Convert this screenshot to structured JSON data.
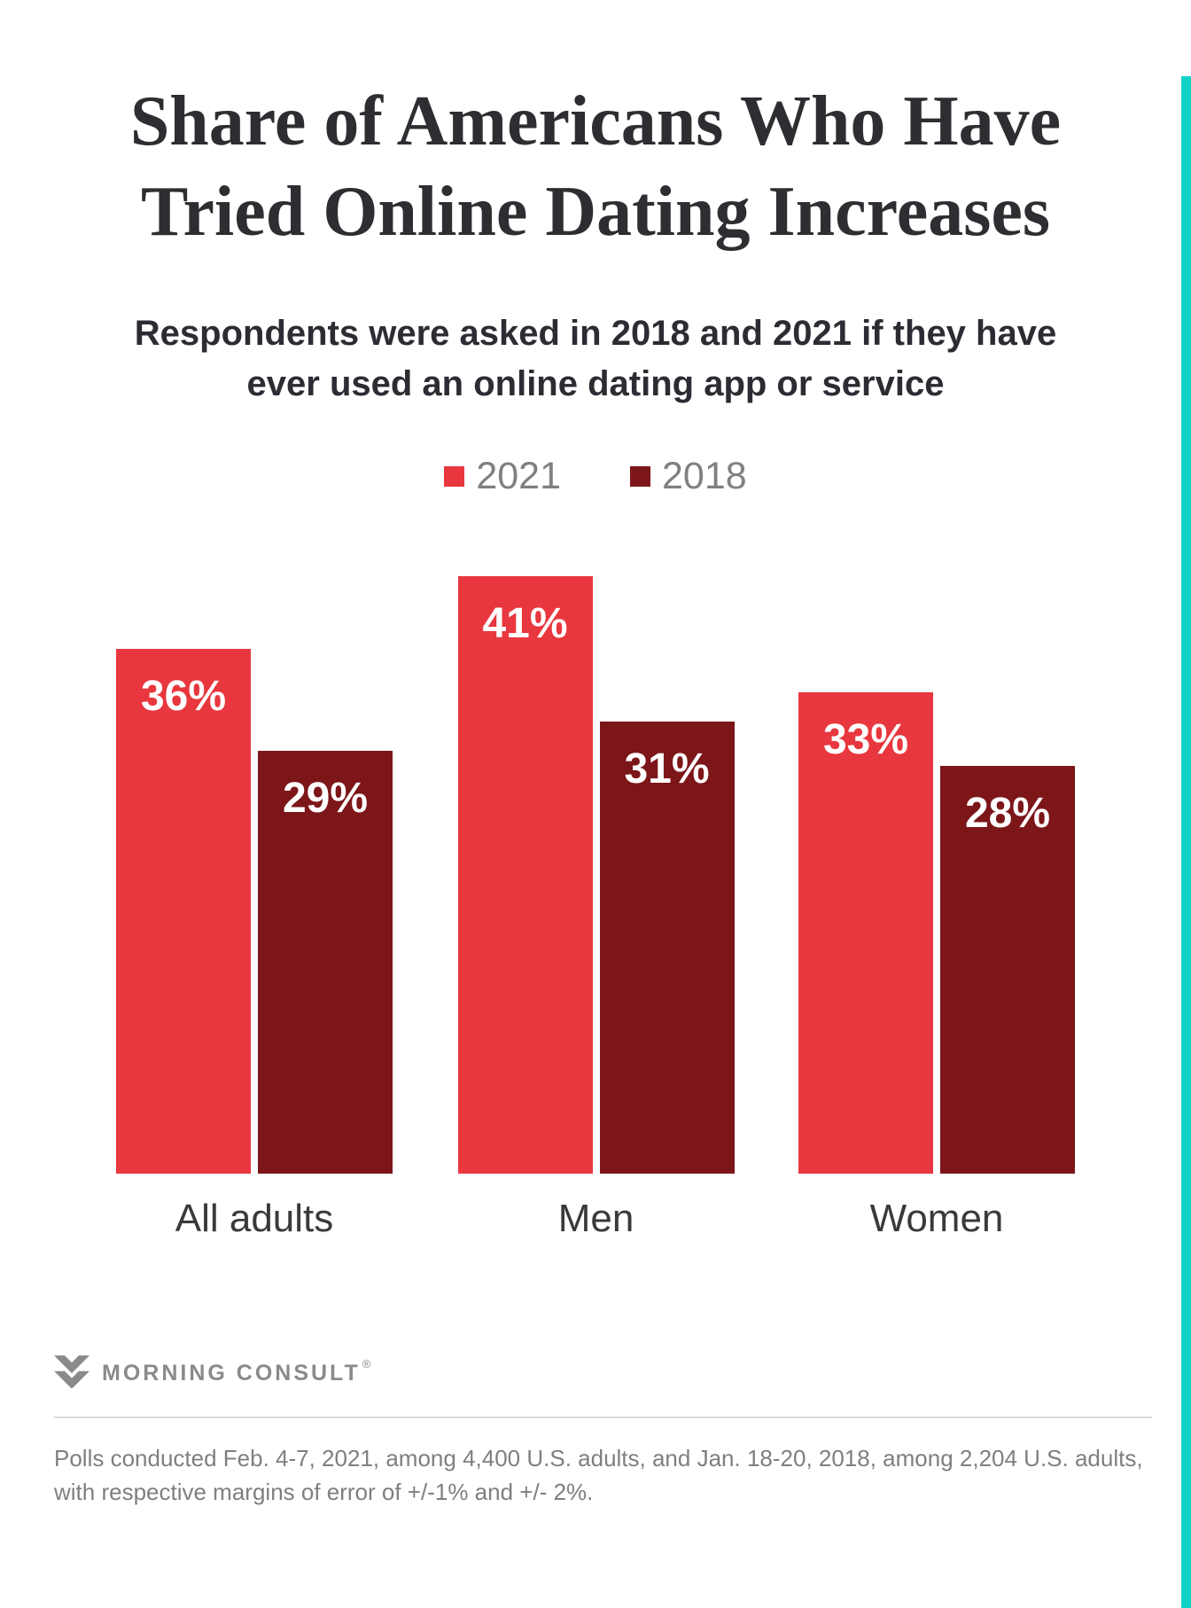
{
  "accent_color": "#10d3c7",
  "title": {
    "lines": [
      "Share of Americans Who Have",
      "Tried Online Dating Increases"
    ]
  },
  "subtitle": {
    "lines": [
      "Respondents were asked in 2018 and 2021 if they have",
      "ever used an online dating app or service"
    ]
  },
  "legend": {
    "items": [
      {
        "label": "2021",
        "color": "#e8373e"
      },
      {
        "label": "2018",
        "color": "#7c1619"
      }
    ]
  },
  "chart_data": {
    "type": "bar",
    "title": "Share of Americans Who Have Tried Online Dating Increases",
    "subtitle": "Respondents were asked in 2018 and 2021 if they have ever used an online dating app or service",
    "categories": [
      "All adults",
      "Men",
      "Women"
    ],
    "series": [
      {
        "name": "2021",
        "color": "#e8373e",
        "values": [
          36,
          41,
          33
        ]
      },
      {
        "name": "2018",
        "color": "#7c1619",
        "values": [
          29,
          31,
          28
        ]
      }
    ],
    "value_suffix": "%",
    "value_label_color": "#ffffff",
    "ylim": [
      0,
      44
    ],
    "grid": false,
    "axes_visible": false,
    "legend_position": "top-center"
  },
  "footer": {
    "logo_text": "MORNING CONSULT",
    "registered_mark": "®",
    "footnote_lines": [
      "Polls conducted Feb. 4-7, 2021, among 4,400 U.S. adults, and Jan. 18-20, 2018, among 2,204 U.S. adults,",
      "with respective margins of error of +/-1% and +/- 2%."
    ]
  }
}
